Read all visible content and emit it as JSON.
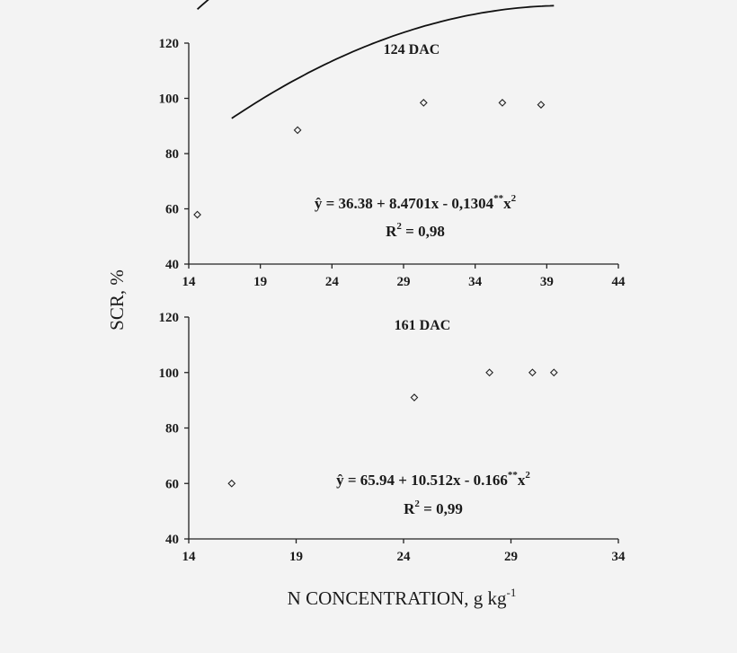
{
  "figure": {
    "ylabel": "SCR, %",
    "xlabel_main": "N CONCENTRATION, g kg",
    "xlabel_sup": "-1"
  },
  "chart_data": [
    {
      "type": "scatter",
      "title": "124 DAC",
      "xlim": [
        14,
        44
      ],
      "ylim": [
        40,
        120
      ],
      "xticks": [
        14,
        19,
        24,
        29,
        34,
        39,
        44
      ],
      "yticks": [
        40,
        60,
        80,
        100,
        120
      ],
      "points": [
        {
          "x": 14.6,
          "y": 57.9
        },
        {
          "x": 21.6,
          "y": 88.5
        },
        {
          "x": 30.4,
          "y": 98.4
        },
        {
          "x": 35.9,
          "y": 98.4
        },
        {
          "x": 38.6,
          "y": 97.7
        }
      ],
      "fit": {
        "c0": 36.38,
        "c1": 8.4701,
        "c2": -0.1304,
        "xrange": [
          14.6,
          38.6
        ]
      },
      "equation": {
        "lhs": "ŷ = 36.38 + 8.4701x - 0,1304",
        "sup": "**",
        "term": "x",
        "pow": "2",
        "r2_label": "R",
        "r2_sup": "2",
        "r2_value": " = 0,98"
      }
    },
    {
      "type": "scatter",
      "title": "161 DAC",
      "xlim": [
        14,
        34
      ],
      "ylim": [
        40,
        120
      ],
      "xticks": [
        14,
        19,
        24,
        29,
        34
      ],
      "yticks": [
        40,
        60,
        80,
        100,
        120
      ],
      "points": [
        {
          "x": 16.0,
          "y": 60.0
        },
        {
          "x": 24.5,
          "y": 91.0
        },
        {
          "x": 28.0,
          "y": 100.0
        },
        {
          "x": 30.0,
          "y": 100.0
        },
        {
          "x": 31.0,
          "y": 100.0
        }
      ],
      "fit": {
        "c0": 65.94,
        "c1": 10.512,
        "c2": -0.166,
        "xrange": [
          16.0,
          31.0
        ]
      },
      "equation": {
        "lhs": "ŷ = 65.94 + 10.512x - 0.166",
        "sup": "**",
        "term": "x",
        "pow": "2",
        "r2_label": "R",
        "r2_sup": "2",
        "r2_value": " = 0,99"
      }
    }
  ]
}
